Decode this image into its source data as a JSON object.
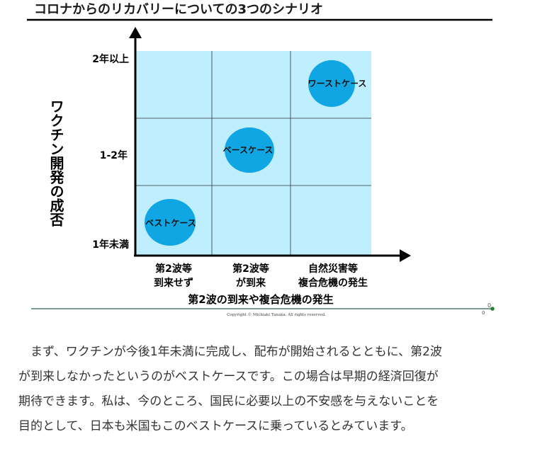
{
  "title": "コロナからのリカバリーについての3つのシナリオ",
  "y_axis": {
    "label": "ワクチン開発の成否",
    "ticks": [
      "2年以上",
      "1-2年",
      "1年未満"
    ]
  },
  "x_axis": {
    "label": "第2波の到来や複合危機の発生",
    "ticks": [
      [
        "第2波等",
        "到来せず"
      ],
      [
        "第2波等",
        "が到来"
      ],
      [
        "自然災害等",
        "複合危機の発生"
      ]
    ]
  },
  "scenarios": [
    {
      "label": "ベストケース",
      "col": 0,
      "row": 0
    },
    {
      "label": "ベースケース",
      "col": 1,
      "row": 1
    },
    {
      "label": "ワーストケース",
      "col": 2,
      "row": 2
    }
  ],
  "copyright": "Copyright © Michiaki Tanaka. All rights reserved.",
  "corner_marks": [
    "0",
    "0"
  ],
  "colors": {
    "grid_bg": "#bfefff",
    "bubble": "#10a6e4",
    "axis": "#000000",
    "footer_line": "#4f7f6a",
    "dot": "#2e7d32"
  },
  "paragraph": [
    "　まず、ワクチンが今後1年未満に完成し、配布が開始されるとともに、第2波",
    "が到来しなかったというのがベストケースです。この場合は早期の経済回復が",
    "期待できます。私は、今のところ、国民に必要以上の不安感を与えないことを",
    "目的として、日本も米国もこのベストケースに乗っているとみています。"
  ]
}
